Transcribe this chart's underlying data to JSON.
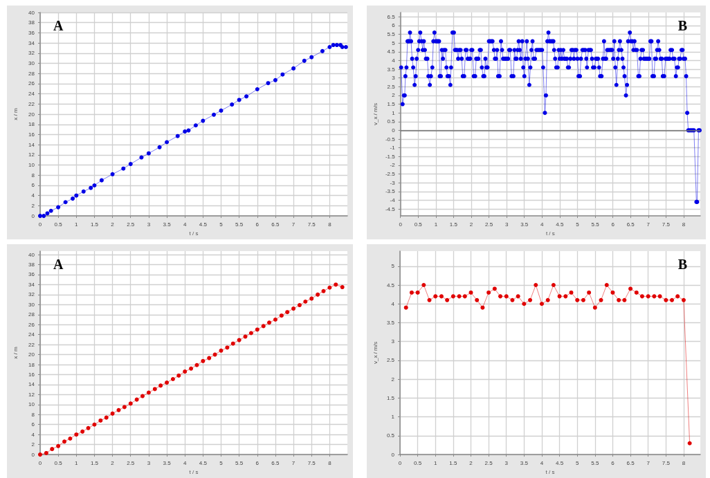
{
  "chart_data": [
    {
      "type": "line",
      "title": "A",
      "xlabel": "t / s",
      "ylabel": "x / m",
      "marker": "circle",
      "grid": true,
      "xlim": [
        0,
        8.49
      ],
      "xticks": [
        0,
        0.5,
        1,
        1.5,
        2,
        2.5,
        3,
        3.5,
        4,
        4.5,
        5,
        5.5,
        6,
        6.5,
        7,
        7.5,
        8
      ],
      "ylim": [
        0,
        40
      ],
      "yticks": [
        0,
        2,
        4,
        6,
        8,
        10,
        12,
        14,
        16,
        18,
        20,
        22,
        24,
        26,
        28,
        30,
        32,
        34,
        36,
        38,
        40
      ],
      "x": [
        0,
        0.1,
        0.2,
        0.3,
        0.5,
        0.7,
        0.9,
        1.0,
        1.2,
        1.4,
        1.5,
        1.7,
        2.0,
        2.3,
        2.5,
        2.8,
        3.0,
        3.3,
        3.5,
        3.8,
        4.0,
        4.1,
        4.3,
        4.5,
        4.8,
        5.0,
        5.3,
        5.5,
        5.7,
        6.0,
        6.3,
        6.5,
        6.7,
        7.0,
        7.3,
        7.5,
        7.8,
        8.0,
        8.1,
        8.2,
        8.3,
        8.35,
        8.45
      ],
      "series": [
        {
          "color": "#0000e6",
          "values": [
            0,
            0,
            0.5,
            1.0,
            1.7,
            2.7,
            3.4,
            4.0,
            4.8,
            5.5,
            6.0,
            7.0,
            8.2,
            9.3,
            10.2,
            11.5,
            12.3,
            13.5,
            14.5,
            15.7,
            16.6,
            16.8,
            17.8,
            18.7,
            19.9,
            20.7,
            21.9,
            22.8,
            23.5,
            24.9,
            26.1,
            26.7,
            27.8,
            29.0,
            30.5,
            31.2,
            32.4,
            33.2,
            33.6,
            33.6,
            33.6,
            33.2,
            33.2
          ]
        }
      ]
    },
    {
      "type": "line",
      "title": "B",
      "xlabel": "t / s",
      "ylabel": "v_x / m/s",
      "marker": "circle",
      "grid": true,
      "xlim": [
        0,
        8.47
      ],
      "xticks": [
        0,
        0.5,
        1,
        1.5,
        2,
        2.5,
        3,
        3.5,
        4,
        4.5,
        5,
        5.5,
        6,
        6.5,
        7,
        7.5,
        8
      ],
      "ylim": [
        -4.9,
        6.75
      ],
      "yticks": [
        -4.5,
        -4,
        -3.5,
        -3,
        -2.5,
        -2,
        -1.5,
        -1,
        -0.5,
        0,
        0.5,
        1,
        1.5,
        2,
        2.5,
        3,
        3.5,
        4,
        4.5,
        5,
        5.5,
        6,
        6.5
      ],
      "ref_lines": [
        {
          "axis": "y",
          "value": 0,
          "color": "#707070"
        }
      ],
      "x": [
        0.02,
        0.06,
        0.1,
        0.12,
        0.14,
        0.17,
        0.2,
        0.23,
        0.25,
        0.27,
        0.3,
        0.33,
        0.36,
        0.4,
        0.43,
        0.46,
        0.5,
        0.53,
        0.56,
        0.6,
        0.63,
        0.66,
        0.69,
        0.72,
        0.76,
        0.79,
        0.83,
        0.86,
        0.9,
        0.93,
        0.96,
        1.0,
        1.03,
        1.06,
        1.09,
        1.11,
        1.14,
        1.17,
        1.2,
        1.23,
        1.27,
        1.3,
        1.33,
        1.37,
        1.41,
        1.43,
        1.47,
        1.51,
        1.54,
        1.57,
        1.6,
        1.63,
        1.66,
        1.7,
        1.73,
        1.76,
        1.8,
        1.84,
        1.87,
        1.9,
        1.94,
        1.97,
        2.0,
        2.03,
        2.07,
        2.11,
        2.14,
        2.17,
        2.2,
        2.24,
        2.27,
        2.3,
        2.34,
        2.37,
        2.4,
        2.43,
        2.46,
        2.5,
        2.53,
        2.57,
        2.6,
        2.64,
        2.67,
        2.7,
        2.73,
        2.76,
        2.8,
        2.84,
        2.87,
        2.9,
        2.94,
        2.97,
        3.0,
        3.04,
        3.07,
        3.1,
        3.14,
        3.19,
        3.22,
        3.25,
        3.28,
        3.31,
        3.34,
        3.37,
        3.4,
        3.44,
        3.47,
        3.5,
        3.53,
        3.57,
        3.6,
        3.64,
        3.67,
        3.7,
        3.73,
        3.76,
        3.8,
        3.84,
        3.88,
        3.92,
        3.96,
        4.0,
        4.03,
        4.08,
        4.11,
        4.15,
        4.18,
        4.21,
        4.25,
        4.29,
        4.32,
        4.34,
        4.37,
        4.4,
        4.44,
        4.47,
        4.5,
        4.53,
        4.56,
        4.6,
        4.63,
        4.67,
        4.7,
        4.73,
        4.76,
        4.8,
        4.83,
        4.87,
        4.9,
        4.93,
        4.97,
        5.0,
        5.03,
        5.07,
        5.1,
        5.14,
        5.18,
        5.22,
        5.25,
        5.27,
        5.31,
        5.35,
        5.38,
        5.41,
        5.44,
        5.48,
        5.52,
        5.55,
        5.58,
        5.61,
        5.64,
        5.68,
        5.72,
        5.75,
        5.78,
        5.81,
        5.84,
        5.88,
        5.92,
        5.95,
        5.98,
        6.01,
        6.04,
        6.07,
        6.1,
        6.14,
        6.17,
        6.2,
        6.24,
        6.27,
        6.3,
        6.33,
        6.37,
        6.4,
        6.43,
        6.48,
        6.51,
        6.55,
        6.58,
        6.61,
        6.64,
        6.68,
        6.72,
        6.75,
        6.78,
        6.81,
        6.85,
        6.88,
        6.92,
        6.96,
        7.0,
        7.03,
        7.06,
        7.09,
        7.12,
        7.16,
        7.19,
        7.22,
        7.25,
        7.28,
        7.31,
        7.35,
        7.38,
        7.41,
        7.45,
        7.49,
        7.52,
        7.56,
        7.6,
        7.63,
        7.67,
        7.7,
        7.74,
        7.78,
        7.81,
        7.84,
        7.87,
        7.9,
        7.94,
        7.97,
        8.0,
        8.04,
        8.07,
        8.1,
        8.13,
        8.17,
        8.21,
        8.25,
        8.29,
        8.36,
        8.38,
        8.42,
        8.45
      ],
      "series": [
        {
          "color": "#0000e6",
          "values": [
            3.6,
            1.5,
            2.0,
            2.0,
            3.1,
            3.6,
            5.1,
            5.1,
            5.1,
            5.6,
            5.1,
            4.1,
            3.6,
            2.6,
            3.1,
            4.1,
            4.6,
            5.1,
            5.6,
            5.1,
            4.6,
            5.1,
            4.6,
            4.1,
            4.1,
            3.1,
            2.6,
            3.1,
            3.6,
            5.1,
            5.6,
            5.1,
            5.1,
            5.1,
            5.1,
            3.1,
            3.1,
            4.6,
            4.1,
            4.6,
            4.6,
            3.6,
            3.1,
            3.1,
            2.6,
            3.6,
            5.6,
            5.6,
            4.6,
            4.6,
            4.6,
            4.1,
            4.6,
            4.6,
            4.1,
            3.1,
            3.1,
            4.6,
            4.6,
            4.1,
            4.1,
            4.1,
            4.6,
            4.6,
            3.1,
            3.1,
            4.1,
            4.1,
            4.1,
            4.6,
            4.6,
            3.6,
            3.1,
            3.1,
            4.1,
            3.6,
            3.6,
            5.1,
            5.1,
            5.1,
            5.1,
            4.6,
            4.1,
            4.1,
            4.6,
            3.1,
            3.1,
            5.1,
            4.6,
            4.1,
            4.1,
            4.1,
            4.1,
            4.1,
            4.6,
            4.6,
            3.1,
            3.1,
            4.6,
            4.1,
            4.1,
            4.6,
            5.1,
            4.6,
            4.1,
            5.1,
            3.6,
            3.1,
            4.1,
            5.1,
            4.1,
            2.6,
            3.6,
            4.6,
            5.1,
            4.1,
            4.1,
            4.6,
            4.6,
            4.6,
            4.6,
            4.6,
            3.6,
            1.0,
            2.0,
            5.1,
            5.6,
            5.1,
            5.1,
            5.1,
            5.1,
            4.6,
            4.1,
            3.6,
            3.6,
            4.6,
            4.1,
            4.6,
            4.1,
            4.6,
            4.1,
            4.1,
            4.1,
            3.6,
            3.6,
            4.1,
            4.6,
            4.6,
            4.1,
            4.6,
            4.6,
            4.1,
            3.1,
            3.1,
            4.1,
            4.6,
            4.6,
            4.6,
            4.1,
            3.6,
            4.6,
            4.6,
            4.6,
            4.1,
            3.6,
            3.6,
            4.1,
            4.1,
            4.1,
            3.6,
            3.1,
            3.1,
            4.1,
            5.1,
            4.1,
            4.1,
            4.6,
            4.6,
            4.6,
            4.6,
            4.6,
            4.1,
            5.1,
            3.6,
            2.6,
            4.1,
            4.6,
            5.1,
            4.6,
            4.1,
            3.6,
            3.1,
            2.0,
            2.6,
            5.1,
            5.6,
            5.1,
            5.1,
            4.6,
            5.1,
            4.6,
            4.6,
            3.1,
            3.1,
            4.1,
            4.6,
            4.6,
            4.1,
            4.1,
            4.1,
            4.1,
            4.1,
            5.1,
            5.1,
            3.1,
            3.1,
            4.1,
            4.1,
            4.6,
            5.1,
            4.6,
            4.1,
            4.1,
            3.1,
            3.1,
            4.1,
            4.1,
            4.1,
            4.1,
            4.6,
            4.6,
            4.1,
            4.1,
            3.1,
            3.6,
            3.6,
            4.1,
            4.1,
            4.6,
            4.6,
            4.1,
            4.1,
            3.1,
            1.0,
            0,
            0,
            0,
            0,
            0,
            -4.1,
            -4.1,
            0,
            0
          ]
        }
      ]
    },
    {
      "type": "line",
      "title": "A",
      "xlabel": "t / s",
      "ylabel": "x / m",
      "marker": "circle",
      "grid": true,
      "xlim": [
        0,
        8.49
      ],
      "xticks": [
        0,
        0.5,
        1,
        1.5,
        2,
        2.5,
        3,
        3.5,
        4,
        4.5,
        5,
        5.5,
        6,
        6.5,
        7,
        7.5,
        8
      ],
      "ylim": [
        0,
        40.7
      ],
      "yticks": [
        0,
        2,
        4,
        6,
        8,
        10,
        12,
        14,
        16,
        18,
        20,
        22,
        24,
        26,
        28,
        30,
        32,
        34,
        36,
        38,
        40
      ],
      "x": [
        0,
        0.17,
        0.33,
        0.5,
        0.67,
        0.83,
        1.0,
        1.17,
        1.33,
        1.5,
        1.67,
        1.83,
        2.0,
        2.17,
        2.33,
        2.5,
        2.67,
        2.83,
        3.0,
        3.17,
        3.33,
        3.5,
        3.67,
        3.83,
        4.0,
        4.17,
        4.33,
        4.5,
        4.67,
        4.83,
        5.0,
        5.17,
        5.33,
        5.5,
        5.67,
        5.83,
        6.0,
        6.17,
        6.33,
        6.5,
        6.67,
        6.83,
        7.0,
        7.17,
        7.33,
        7.5,
        7.67,
        7.83,
        8.0,
        8.17,
        8.35
      ],
      "series": [
        {
          "color": "#e00000",
          "values": [
            0,
            0.3,
            1.1,
            1.7,
            2.6,
            3.2,
            4.0,
            4.6,
            5.3,
            6.0,
            6.8,
            7.4,
            8.2,
            8.9,
            9.5,
            10.2,
            11.0,
            11.7,
            12.4,
            13.1,
            13.8,
            14.4,
            15.1,
            15.8,
            16.6,
            17.2,
            17.9,
            18.7,
            19.3,
            20.0,
            20.8,
            21.4,
            22.2,
            22.9,
            23.6,
            24.3,
            25.0,
            25.7,
            26.4,
            27.0,
            27.8,
            28.5,
            29.2,
            29.9,
            30.6,
            31.2,
            32.0,
            32.7,
            33.4,
            34.0,
            33.5
          ]
        }
      ]
    },
    {
      "type": "line",
      "title": "B",
      "xlabel": "t / s",
      "ylabel": "v_x / m/s",
      "marker": "circle",
      "grid": true,
      "xlim": [
        0,
        8.47
      ],
      "xticks": [
        0,
        0.5,
        1,
        1.5,
        2,
        2.5,
        3,
        3.5,
        4,
        4.5,
        5,
        5.5,
        6,
        6.5,
        7,
        7.5,
        8
      ],
      "ylim": [
        0,
        5.4
      ],
      "yticks": [
        0,
        0.5,
        1,
        1.5,
        2,
        2.5,
        3,
        3.5,
        4,
        4.5,
        5
      ],
      "x": [
        0.17,
        0.33,
        0.5,
        0.67,
        0.83,
        1.0,
        1.17,
        1.33,
        1.5,
        1.67,
        1.83,
        2.0,
        2.17,
        2.33,
        2.5,
        2.67,
        2.83,
        3.0,
        3.17,
        3.33,
        3.5,
        3.67,
        3.83,
        4.0,
        4.17,
        4.33,
        4.5,
        4.67,
        4.83,
        5.0,
        5.17,
        5.33,
        5.5,
        5.67,
        5.83,
        6.0,
        6.17,
        6.33,
        6.5,
        6.67,
        6.83,
        7.0,
        7.17,
        7.33,
        7.5,
        7.67,
        7.83,
        8.0,
        8.17
      ],
      "series": [
        {
          "color": "#e00000",
          "values": [
            3.9,
            4.3,
            4.3,
            4.5,
            4.1,
            4.2,
            4.2,
            4.1,
            4.2,
            4.2,
            4.2,
            4.3,
            4.1,
            3.9,
            4.3,
            4.4,
            4.2,
            4.2,
            4.1,
            4.2,
            4.0,
            4.1,
            4.5,
            4.0,
            4.1,
            4.5,
            4.2,
            4.2,
            4.3,
            4.1,
            4.1,
            4.3,
            3.9,
            4.1,
            4.5,
            4.3,
            4.1,
            4.1,
            4.4,
            4.3,
            4.2,
            4.2,
            4.2,
            4.2,
            4.1,
            4.1,
            4.2,
            4.1,
            0.3
          ]
        }
      ]
    }
  ]
}
